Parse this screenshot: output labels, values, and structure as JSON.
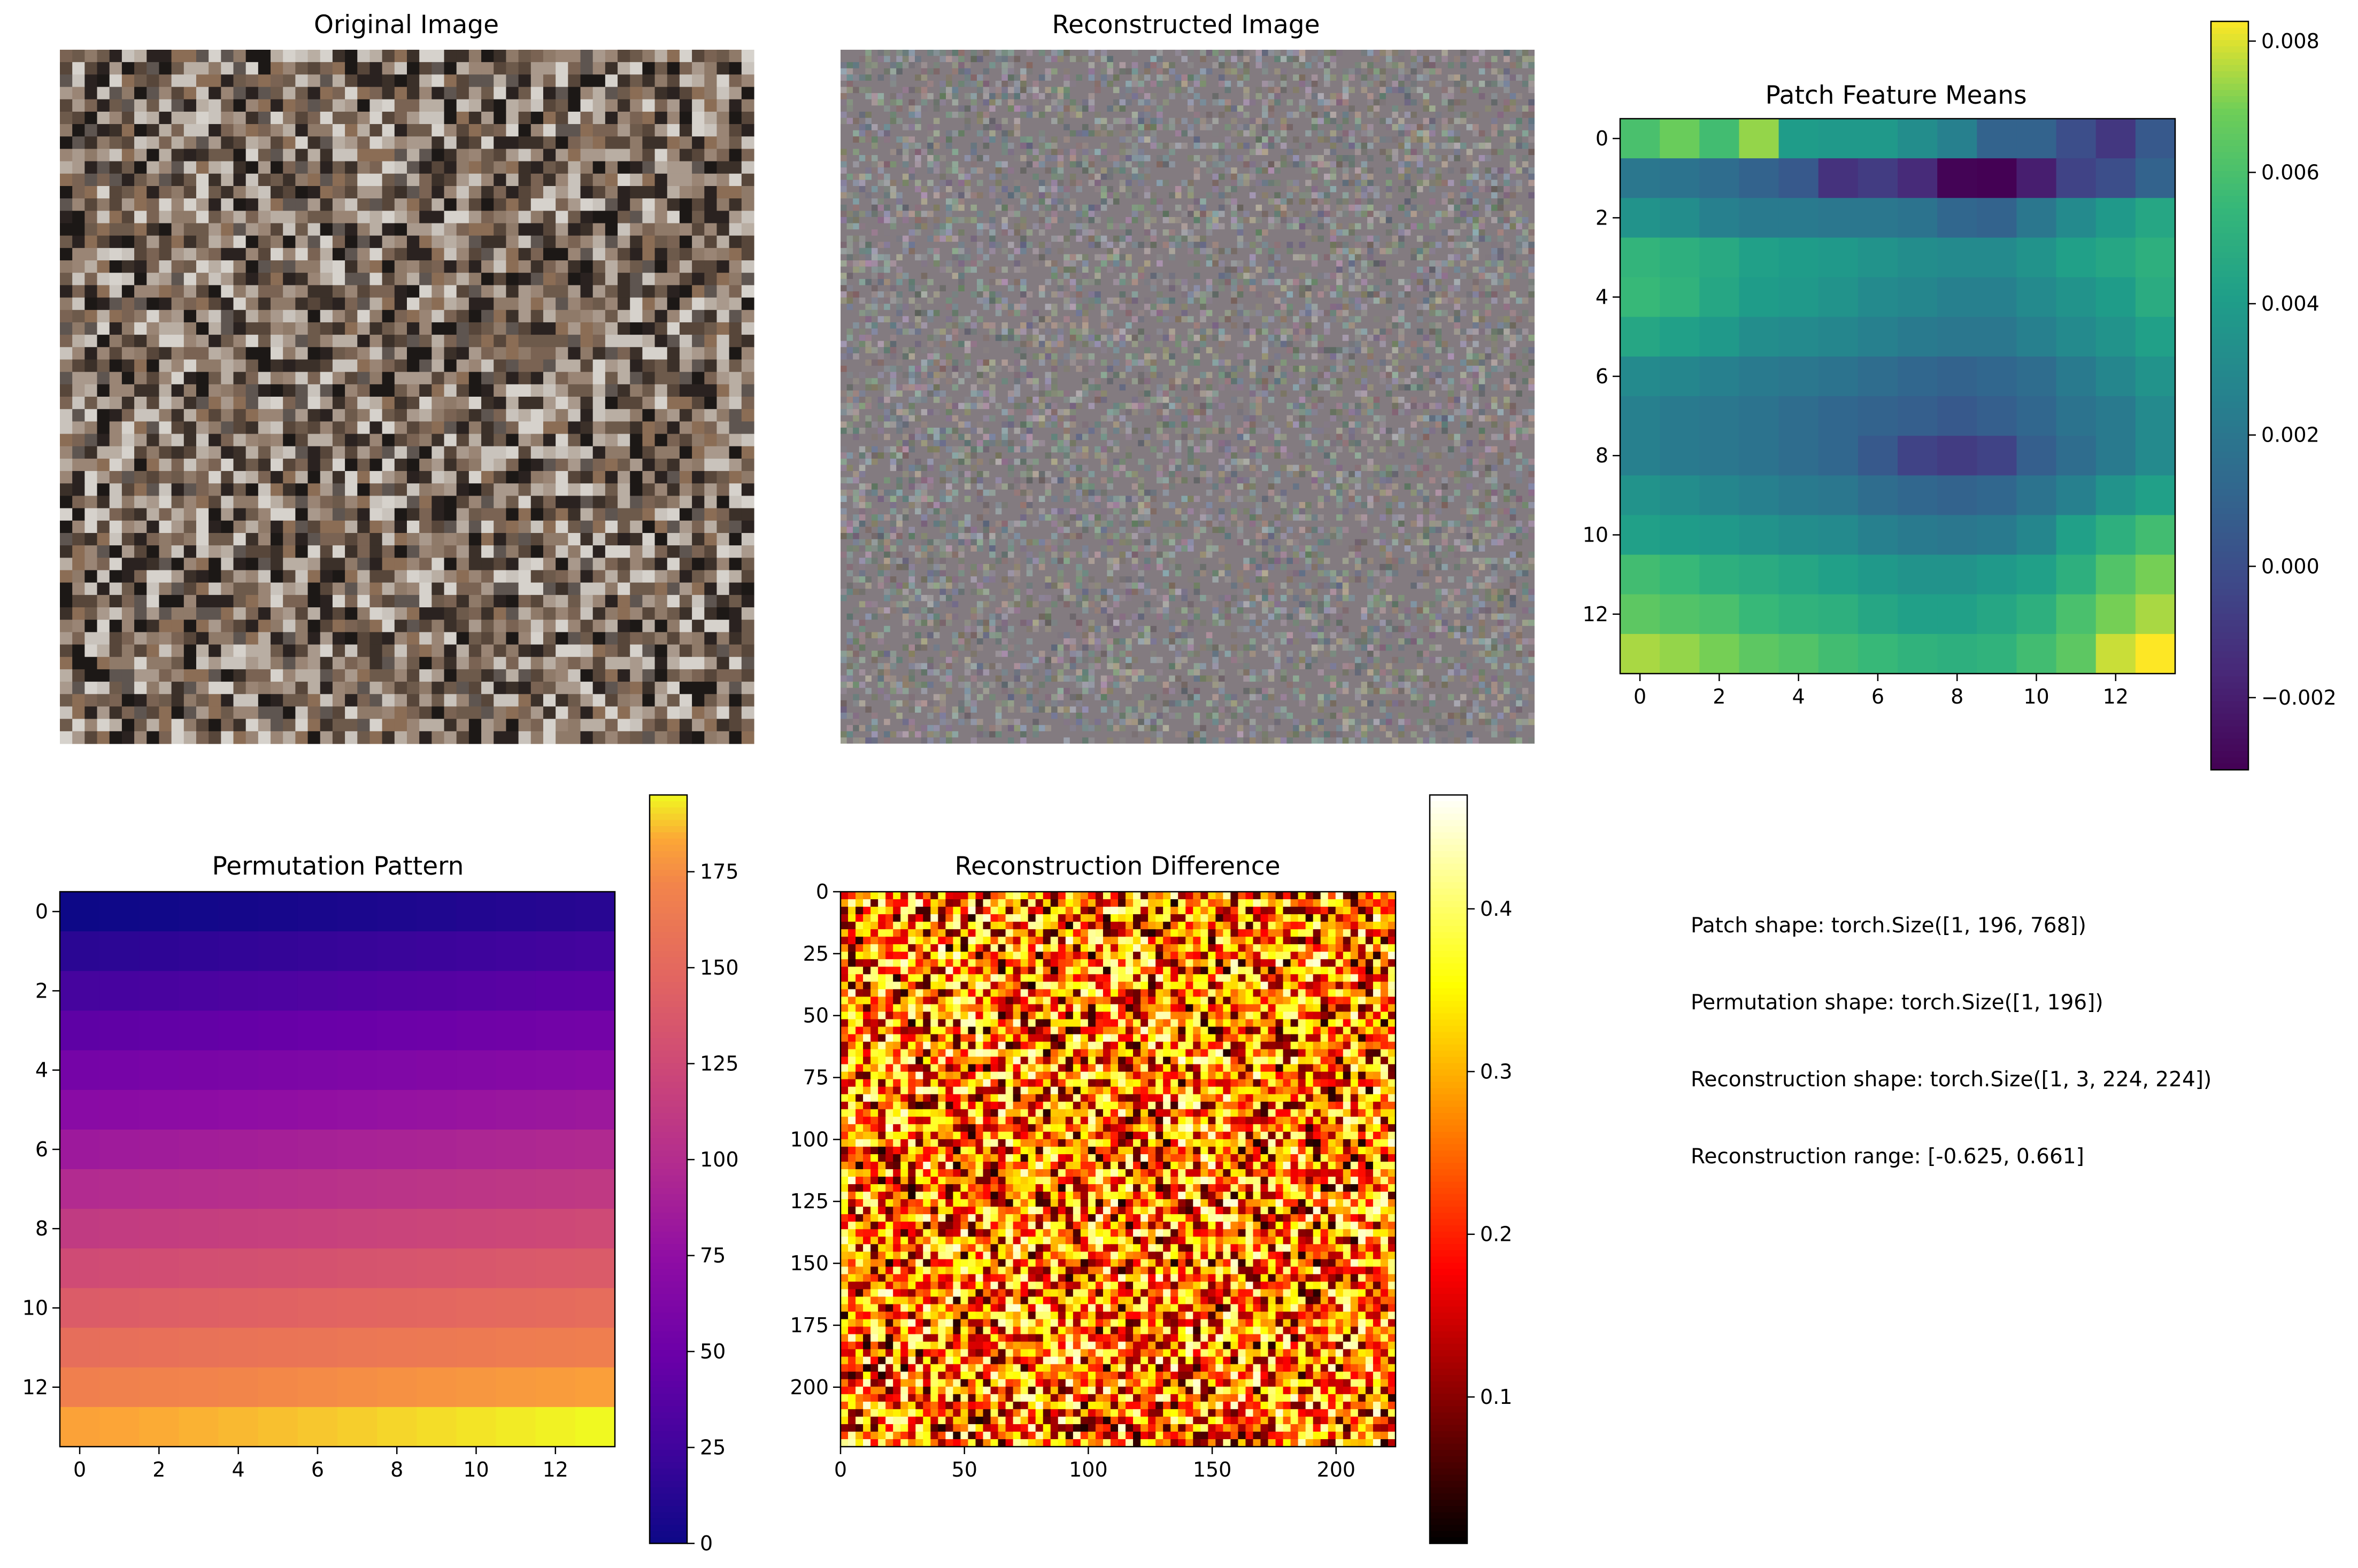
{
  "chart_data": [
    {
      "type": "image",
      "title": "Original Image",
      "description_visible": "grid of small gray/brown/black/white pixel blocks",
      "axis": "off"
    },
    {
      "type": "image",
      "title": "Reconstructed Image",
      "description_visible": "fine grayish noise",
      "axis": "off"
    },
    {
      "type": "heatmap",
      "title": "Patch Feature Means",
      "colormap": "viridis",
      "xticks": [
        "0",
        "2",
        "4",
        "6",
        "8",
        "10",
        "12"
      ],
      "yticks": [
        "0",
        "2",
        "4",
        "6",
        "8",
        "10",
        "12"
      ],
      "xtick_values": [
        0,
        2,
        4,
        6,
        8,
        10,
        12
      ],
      "ytick_values": [
        0,
        2,
        4,
        6,
        8,
        10,
        12
      ],
      "grid_size": 14,
      "vmin": -0.0031,
      "vmax": 0.0083,
      "colorbar_ticks": [
        "0.008",
        "0.006",
        "0.004",
        "0.002",
        "0.000",
        "−0.002"
      ],
      "colorbar_tick_values": [
        0.008,
        0.006,
        0.004,
        0.002,
        0.0,
        -0.002
      ],
      "values": [
        [
          0.006,
          0.0068,
          0.0058,
          0.0073,
          0.004,
          0.0038,
          0.0038,
          0.0032,
          0.0025,
          0.001,
          0.001,
          0.0,
          -0.001,
          0.0005
        ],
        [
          0.002,
          0.0018,
          0.0015,
          0.001,
          0.0005,
          -0.0012,
          -0.0008,
          -0.0015,
          -0.003,
          -0.0031,
          -0.002,
          -0.0005,
          0.0,
          0.001
        ],
        [
          0.0035,
          0.0032,
          0.0025,
          0.0022,
          0.0022,
          0.002,
          0.002,
          0.0018,
          0.0012,
          0.001,
          0.002,
          0.003,
          0.0038,
          0.0045
        ],
        [
          0.0053,
          0.005,
          0.0047,
          0.0042,
          0.004,
          0.0038,
          0.0035,
          0.0032,
          0.003,
          0.003,
          0.0035,
          0.0042,
          0.0045,
          0.005
        ],
        [
          0.0055,
          0.0052,
          0.0045,
          0.004,
          0.0038,
          0.0035,
          0.003,
          0.0028,
          0.0025,
          0.0025,
          0.003,
          0.0035,
          0.004,
          0.0048
        ],
        [
          0.0045,
          0.0042,
          0.0038,
          0.0032,
          0.003,
          0.0028,
          0.0025,
          0.0022,
          0.002,
          0.002,
          0.0025,
          0.003,
          0.0035,
          0.0042
        ],
        [
          0.003,
          0.0028,
          0.0025,
          0.0022,
          0.002,
          0.0018,
          0.0015,
          0.0012,
          0.001,
          0.0012,
          0.0015,
          0.0022,
          0.0028,
          0.0035
        ],
        [
          0.0025,
          0.0022,
          0.002,
          0.0018,
          0.0015,
          0.0012,
          0.001,
          0.0008,
          0.0005,
          0.0008,
          0.0012,
          0.0018,
          0.0022,
          0.003
        ],
        [
          0.0025,
          0.0022,
          0.002,
          0.0018,
          0.0015,
          0.0012,
          0.0005,
          -0.0005,
          -0.0008,
          -0.0005,
          0.0008,
          0.0015,
          0.0022,
          0.003
        ],
        [
          0.0035,
          0.0032,
          0.0028,
          0.0025,
          0.0022,
          0.002,
          0.0015,
          0.0012,
          0.001,
          0.0012,
          0.0018,
          0.0025,
          0.0035,
          0.0042
        ],
        [
          0.0042,
          0.004,
          0.0038,
          0.0035,
          0.0032,
          0.003,
          0.0025,
          0.0022,
          0.002,
          0.0022,
          0.0028,
          0.0042,
          0.005,
          0.0058
        ],
        [
          0.0058,
          0.0055,
          0.005,
          0.0048,
          0.0045,
          0.0042,
          0.0038,
          0.0035,
          0.0035,
          0.0038,
          0.0042,
          0.005,
          0.0062,
          0.007
        ],
        [
          0.0065,
          0.0062,
          0.006,
          0.0055,
          0.0052,
          0.005,
          0.0045,
          0.0042,
          0.0042,
          0.0045,
          0.005,
          0.006,
          0.007,
          0.0075
        ],
        [
          0.0075,
          0.0073,
          0.007,
          0.0065,
          0.0062,
          0.0058,
          0.0055,
          0.0052,
          0.005,
          0.0052,
          0.0058,
          0.0065,
          0.0078,
          0.0083
        ]
      ]
    },
    {
      "type": "heatmap",
      "title": "Permutation Pattern",
      "colormap": "plasma",
      "xticks": [
        "0",
        "2",
        "4",
        "6",
        "8",
        "10",
        "12"
      ],
      "yticks": [
        "0",
        "2",
        "4",
        "6",
        "8",
        "10",
        "12"
      ],
      "xtick_values": [
        0,
        2,
        4,
        6,
        8,
        10,
        12
      ],
      "ytick_values": [
        0,
        2,
        4,
        6,
        8,
        10,
        12
      ],
      "grid_size": 14,
      "vmin": 0,
      "vmax": 195,
      "colorbar_ticks": [
        "175",
        "150",
        "125",
        "100",
        "75",
        "50",
        "25",
        "0"
      ],
      "colorbar_tick_values": [
        175,
        150,
        125,
        100,
        75,
        50,
        25,
        0
      ],
      "values_rule": "row * 14 + column"
    },
    {
      "type": "heatmap",
      "title": "Reconstruction Difference",
      "colormap": "hot",
      "xticks": [
        "0",
        "50",
        "100",
        "150",
        "200"
      ],
      "yticks": [
        "0",
        "25",
        "50",
        "75",
        "100",
        "125",
        "150",
        "175",
        "200"
      ],
      "xtick_values": [
        0,
        50,
        100,
        150,
        200
      ],
      "ytick_values": [
        0,
        25,
        50,
        75,
        100,
        125,
        150,
        175,
        200
      ],
      "extent": [
        0,
        224
      ],
      "vmin": 0.01,
      "vmax": 0.47,
      "colorbar_ticks": [
        "0.4",
        "0.3",
        "0.2",
        "0.1"
      ],
      "colorbar_tick_values": [
        0.4,
        0.3,
        0.2,
        0.1
      ]
    }
  ],
  "stats": {
    "line1": "Patch shape: torch.Size([1, 196, 768])",
    "line2": "Permutation shape: torch.Size([1, 196])",
    "line3": "Reconstruction shape: torch.Size([1, 3, 224, 224])",
    "line4": "Reconstruction range: [-0.625, 0.661]"
  }
}
